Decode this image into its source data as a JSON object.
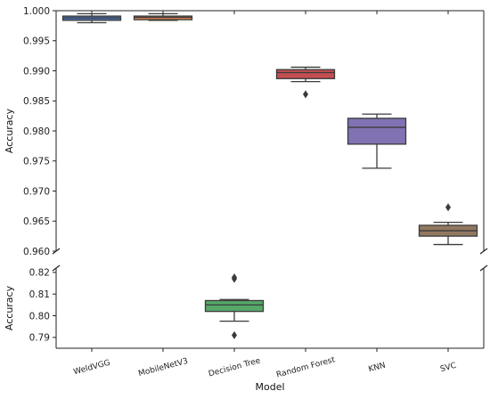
{
  "chart_data": {
    "type": "box",
    "xlabel": "Model",
    "ylabel": "Accuracy",
    "categories": [
      "WeldVGG",
      "MobileNetV3",
      "Decision Tree",
      "Random Forest",
      "KNN",
      "SVC"
    ],
    "broken_axis": true,
    "panels": [
      {
        "ylim": [
          0.96,
          1.0
        ],
        "yticks": [
          "0.960",
          "0.965",
          "0.970",
          "0.975",
          "0.980",
          "0.985",
          "0.990",
          "0.995",
          "1.000"
        ]
      },
      {
        "ylim": [
          0.785,
          0.822
        ],
        "yticks": [
          "0.79",
          "0.80",
          "0.81",
          "0.82"
        ]
      }
    ],
    "series": [
      {
        "category": "WeldVGG",
        "color": "#4c72b0",
        "panel": 0,
        "min": 0.998,
        "q1": 0.9984,
        "median": 0.9988,
        "q3": 0.9991,
        "max": 0.9995,
        "outliers": []
      },
      {
        "category": "MobileNetV3",
        "color": "#dd8452",
        "panel": 0,
        "min": 0.9984,
        "q1": 0.9985,
        "median": 0.9989,
        "q3": 0.9991,
        "max": 0.9995,
        "outliers": []
      },
      {
        "category": "Decision Tree",
        "color": "#55a868",
        "panel": 1,
        "min": 0.7975,
        "q1": 0.802,
        "median": 0.805,
        "q3": 0.807,
        "max": 0.8075,
        "outliers": [
          0.817,
          0.8177,
          0.791
        ]
      },
      {
        "category": "Random Forest",
        "color": "#c44e52",
        "panel": 0,
        "min": 0.9882,
        "q1": 0.9887,
        "median": 0.9897,
        "q3": 0.9902,
        "max": 0.9906,
        "outliers": [
          0.9861
        ]
      },
      {
        "category": "KNN",
        "color": "#8172b3",
        "panel": 0,
        "min": 0.9738,
        "q1": 0.9778,
        "median": 0.9806,
        "q3": 0.9821,
        "max": 0.9828,
        "outliers": []
      },
      {
        "category": "SVC",
        "color": "#937860",
        "panel": 0,
        "min": 0.9611,
        "q1": 0.9625,
        "median": 0.9634,
        "q3": 0.9643,
        "max": 0.9648,
        "outliers": [
          0.9673
        ]
      }
    ]
  }
}
